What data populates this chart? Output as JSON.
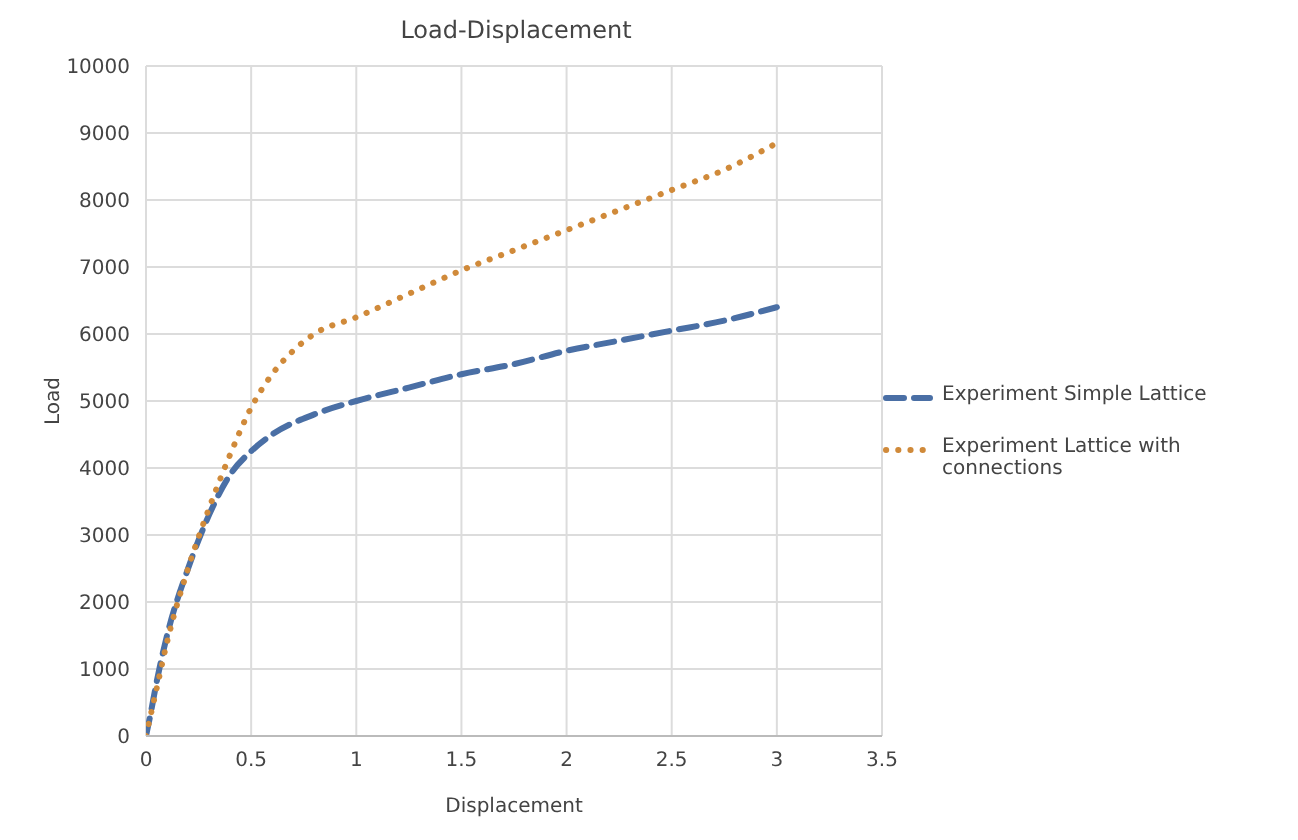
{
  "chart_data": {
    "type": "line",
    "title": "Load-Displacement",
    "xlabel": "Displacement",
    "ylabel": "Load",
    "xlim": [
      0,
      3.5
    ],
    "xticks": [
      0,
      0.5,
      1,
      1.5,
      2,
      2.5,
      3,
      3.5
    ],
    "ylim": [
      0,
      10000
    ],
    "yticks": [
      0,
      1000,
      2000,
      3000,
      4000,
      5000,
      6000,
      7000,
      8000,
      9000,
      10000
    ],
    "grid": true,
    "legend": "right",
    "marker": "none",
    "series": [
      {
        "name": "Experiment Simple Lattice",
        "color": "#4a6fa5",
        "line_style": "dashed",
        "x": [
          0,
          0.02,
          0.05,
          0.1,
          0.2,
          0.3,
          0.4,
          0.5,
          0.6,
          0.8,
          1,
          1.25,
          1.5,
          1.75,
          2,
          2.25,
          2.5,
          2.75,
          3
        ],
        "values": [
          0,
          300,
          800,
          1500,
          2500,
          3300,
          3900,
          4250,
          4500,
          4800,
          5000,
          5200,
          5400,
          5550,
          5750,
          5900,
          6050,
          6200,
          6400
        ]
      },
      {
        "name": "Experiment Lattice with connections",
        "color": "#d08a3a",
        "line_style": "dotted",
        "x": [
          0,
          0.05,
          0.1,
          0.2,
          0.3,
          0.4,
          0.5,
          0.6,
          0.7,
          0.8,
          1,
          1.25,
          1.5,
          1.75,
          2,
          2.25,
          2.5,
          2.75,
          3
        ],
        "values": [
          0,
          700,
          1400,
          2500,
          3400,
          4200,
          4900,
          5400,
          5750,
          6000,
          6250,
          6600,
          6950,
          7250,
          7550,
          7850,
          8150,
          8450,
          8850
        ]
      }
    ]
  }
}
